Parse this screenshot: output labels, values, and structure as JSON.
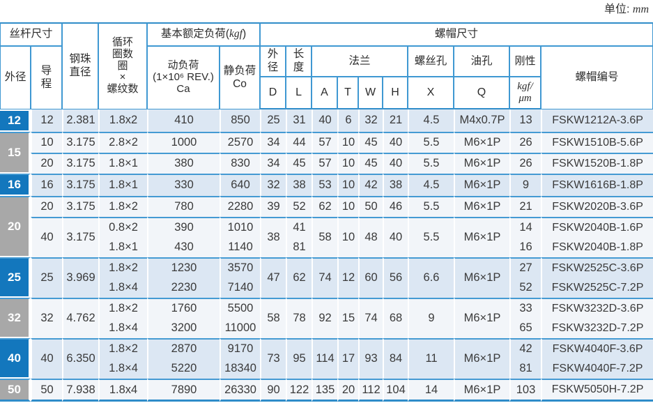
{
  "page": {
    "unit_label": "单位:",
    "unit_value": "mm"
  },
  "colors": {
    "accent_blue": "#2f8cc9",
    "grid_blue": "#3f98d2",
    "separator_blue": "#449ad3",
    "label_blue": "#1377bd",
    "label_gray": "#a8a8a8",
    "row_blue_bg": "#dce7f3",
    "row_light_bg": "#f2f5f9",
    "text": "#3a3a3a"
  },
  "table": {
    "header": {
      "rows": [
        [
          {
            "t": "丝杆尺寸",
            "cs": 2,
            "name": "header-screw-size"
          },
          {
            "t": "钢珠\n直径",
            "rs": 3,
            "name": "header-ball-diameter"
          },
          {
            "t": "循环\n圈数\n圈\n×\n螺纹数",
            "rs": 3,
            "cls": "tight",
            "name": "header-circuits"
          },
          {
            "t": "基本额定负荷(",
            "cs": 2,
            "name": "header-basic-load",
            "parts": [
              {
                "t": "基本额定负荷("
              },
              {
                "t": "kgf",
                "cls": "it"
              },
              {
                "t": ")"
              }
            ]
          },
          {
            "t": "螺帽尺寸",
            "cs": 10,
            "cls": "bline-none",
            "name": "header-nut-size"
          }
        ],
        [
          {
            "t": "外径",
            "rs": 2,
            "name": "header-outer-diameter"
          },
          {
            "t": "导\n程",
            "rs": 2,
            "name": "header-lead"
          },
          {
            "t": "动负荷\n(1×10⁶ REV.)\nCa",
            "rs": 2,
            "cls": "tight",
            "name": "header-dynamic-load"
          },
          {
            "t": "静负荷\nCo",
            "rs": 2,
            "name": "header-static-load"
          },
          {
            "t": "外\n径",
            "name": "header-nut-od"
          },
          {
            "t": "长\n度",
            "name": "header-nut-length"
          },
          {
            "t": "法兰",
            "cs": 4,
            "name": "header-flange"
          },
          {
            "t": "螺丝孔",
            "name": "header-screw-hole"
          },
          {
            "t": "油孔",
            "name": "header-oil-hole"
          },
          {
            "t": "刚性",
            "cls": "tight",
            "name": "header-rigidity"
          },
          {
            "t": "螺帽编号",
            "rs": 2,
            "name": "header-nut-number"
          }
        ],
        [
          {
            "t": "D",
            "cls": "lat",
            "name": "header-col-d"
          },
          {
            "t": "L",
            "cls": "lat",
            "name": "header-col-l"
          },
          {
            "t": "A",
            "cls": "lat",
            "name": "header-col-a"
          },
          {
            "t": "T",
            "cls": "lat",
            "name": "header-col-t"
          },
          {
            "t": "W",
            "cls": "lat",
            "name": "header-col-w"
          },
          {
            "t": "H",
            "cls": "lat",
            "name": "header-col-h"
          },
          {
            "t": "X",
            "cls": "lat",
            "name": "header-col-x"
          },
          {
            "t": "Q",
            "cls": "lat",
            "name": "header-col-q"
          },
          {
            "t": "kgf/\nμm",
            "cls": "it tight",
            "name": "header-rigidity-unit"
          }
        ]
      ]
    },
    "body": {
      "rows": [
        {
          "cls": "g-blue",
          "cells": [
            {
              "t": "12",
              "cls": "lbl lbl-blue",
              "name": "row-label"
            },
            {
              "t": "12"
            },
            {
              "t": "2.381"
            },
            {
              "t": "1.8x2"
            },
            {
              "t": "410"
            },
            {
              "t": "850"
            },
            {
              "t": "25"
            },
            {
              "t": "31"
            },
            {
              "t": "40"
            },
            {
              "t": "6"
            },
            {
              "t": "32"
            },
            {
              "t": "21"
            },
            {
              "t": "4.5"
            },
            {
              "t": "M4x0.7P"
            },
            {
              "t": "13"
            },
            {
              "t": "FSKW1212A-3.6P",
              "cls": "pn"
            }
          ]
        },
        {
          "cls": "g-light sep",
          "cells": [
            {
              "t": "15",
              "cls": "lbl lbl-gray",
              "rs": 2,
              "name": "row-label"
            },
            {
              "t": "10"
            },
            {
              "t": "3.175"
            },
            {
              "t": "2.8×2"
            },
            {
              "t": "1000"
            },
            {
              "t": "2570"
            },
            {
              "t": "34"
            },
            {
              "t": "44"
            },
            {
              "t": "57"
            },
            {
              "t": "10"
            },
            {
              "t": "45"
            },
            {
              "t": "40"
            },
            {
              "t": "5.5"
            },
            {
              "t": "M6×1P"
            },
            {
              "t": "26"
            },
            {
              "t": "FSKW1510B-5.6P",
              "cls": "pn"
            }
          ]
        },
        {
          "cls": "g-light sep",
          "cells": [
            {
              "t": "20"
            },
            {
              "t": "3.175"
            },
            {
              "t": "1.8×1"
            },
            {
              "t": "380"
            },
            {
              "t": "830"
            },
            {
              "t": "34"
            },
            {
              "t": "45"
            },
            {
              "t": "57"
            },
            {
              "t": "10"
            },
            {
              "t": "45"
            },
            {
              "t": "40"
            },
            {
              "t": "5.5"
            },
            {
              "t": "M6×1P"
            },
            {
              "t": "26"
            },
            {
              "t": "FSKW1520B-1.8P",
              "cls": "pn"
            }
          ]
        },
        {
          "cls": "g-blue sep",
          "cells": [
            {
              "t": "16",
              "cls": "lbl lbl-blue",
              "name": "row-label"
            },
            {
              "t": "16"
            },
            {
              "t": "3.175"
            },
            {
              "t": "1.8×1"
            },
            {
              "t": "330"
            },
            {
              "t": "640"
            },
            {
              "t": "32"
            },
            {
              "t": "38"
            },
            {
              "t": "53"
            },
            {
              "t": "10"
            },
            {
              "t": "42"
            },
            {
              "t": "38"
            },
            {
              "t": "4.5"
            },
            {
              "t": "M6×1P"
            },
            {
              "t": "9"
            },
            {
              "t": "FSKW1616B-1.8P",
              "cls": "pn"
            }
          ]
        },
        {
          "cls": "g-light sep",
          "cells": [
            {
              "t": "20",
              "cls": "lbl lbl-gray",
              "rs": 3,
              "name": "row-label"
            },
            {
              "t": "20"
            },
            {
              "t": "3.175"
            },
            {
              "t": "1.8×2"
            },
            {
              "t": "780"
            },
            {
              "t": "2280"
            },
            {
              "t": "39"
            },
            {
              "t": "52"
            },
            {
              "t": "62"
            },
            {
              "t": "10"
            },
            {
              "t": "50"
            },
            {
              "t": "46"
            },
            {
              "t": "5.5"
            },
            {
              "t": "M6×1P"
            },
            {
              "t": "21"
            },
            {
              "t": "FSKW2020B-3.6P",
              "cls": "pn"
            }
          ]
        },
        {
          "cls": "g-light sep",
          "cells": [
            {
              "t": "40",
              "rs": 2
            },
            {
              "t": "3.175",
              "rs": 2
            },
            {
              "t": "0.8×2"
            },
            {
              "t": "390"
            },
            {
              "t": "1010"
            },
            {
              "t": "38",
              "rs": 2
            },
            {
              "t": "41"
            },
            {
              "t": "58",
              "rs": 2
            },
            {
              "t": "10",
              "rs": 2
            },
            {
              "t": "48",
              "rs": 2
            },
            {
              "t": "40",
              "rs": 2
            },
            {
              "t": "5.5",
              "rs": 2
            },
            {
              "t": "M6×1P",
              "rs": 2
            },
            {
              "t": "14"
            },
            {
              "t": "FSKW2040B-1.6P",
              "cls": "pn"
            }
          ]
        },
        {
          "cls": "g-light",
          "cells": [
            {
              "t": "1.8×1"
            },
            {
              "t": "430"
            },
            {
              "t": "1140"
            },
            {
              "t": "81"
            },
            {
              "t": "16"
            },
            {
              "t": "FSKW2040B-1.8P",
              "cls": "pn"
            }
          ]
        },
        {
          "cls": "g-blue sep",
          "cells": [
            {
              "t": "25",
              "cls": "lbl lbl-blue",
              "rs": 2,
              "name": "row-label"
            },
            {
              "t": "25",
              "rs": 2
            },
            {
              "t": "3.969",
              "rs": 2
            },
            {
              "t": "1.8×2"
            },
            {
              "t": "1230"
            },
            {
              "t": "3570"
            },
            {
              "t": "47",
              "rs": 2
            },
            {
              "t": "62",
              "rs": 2
            },
            {
              "t": "74",
              "rs": 2
            },
            {
              "t": "12",
              "rs": 2
            },
            {
              "t": "60",
              "rs": 2
            },
            {
              "t": "56",
              "rs": 2
            },
            {
              "t": "6.6",
              "rs": 2
            },
            {
              "t": "M6×1P",
              "rs": 2
            },
            {
              "t": "27"
            },
            {
              "t": "FSKW2525C-3.6P",
              "cls": "pn"
            }
          ]
        },
        {
          "cls": "g-blue",
          "cells": [
            {
              "t": "1.8×4"
            },
            {
              "t": "2230"
            },
            {
              "t": "7140"
            },
            {
              "t": "52"
            },
            {
              "t": "FSKW2525C-7.2P",
              "cls": "pn"
            }
          ]
        },
        {
          "cls": "g-light sep",
          "cells": [
            {
              "t": "32",
              "cls": "lbl lbl-gray",
              "rs": 2,
              "name": "row-label"
            },
            {
              "t": "32",
              "rs": 2
            },
            {
              "t": "4.762",
              "rs": 2
            },
            {
              "t": "1.8×2"
            },
            {
              "t": "1760"
            },
            {
              "t": "5500"
            },
            {
              "t": "58",
              "rs": 2
            },
            {
              "t": "78",
              "rs": 2
            },
            {
              "t": "92",
              "rs": 2
            },
            {
              "t": "15",
              "rs": 2
            },
            {
              "t": "74",
              "rs": 2
            },
            {
              "t": "68",
              "rs": 2
            },
            {
              "t": "9",
              "rs": 2
            },
            {
              "t": "M6×1P",
              "rs": 2
            },
            {
              "t": "33"
            },
            {
              "t": "FSKW3232D-3.6P",
              "cls": "pn"
            }
          ]
        },
        {
          "cls": "g-light",
          "cells": [
            {
              "t": "1.8×4"
            },
            {
              "t": "3200"
            },
            {
              "t": "11000"
            },
            {
              "t": "65"
            },
            {
              "t": "FSKW3232D-7.2P",
              "cls": "pn"
            }
          ]
        },
        {
          "cls": "g-blue sep",
          "cells": [
            {
              "t": "40",
              "cls": "lbl lbl-blue",
              "rs": 2,
              "name": "row-label"
            },
            {
              "t": "40",
              "rs": 2
            },
            {
              "t": "6.350",
              "rs": 2
            },
            {
              "t": "1.8×2"
            },
            {
              "t": "2870"
            },
            {
              "t": "9170"
            },
            {
              "t": "73",
              "rs": 2
            },
            {
              "t": "95",
              "rs": 2
            },
            {
              "t": "114",
              "rs": 2
            },
            {
              "t": "17",
              "rs": 2
            },
            {
              "t": "93",
              "rs": 2
            },
            {
              "t": "84",
              "rs": 2
            },
            {
              "t": "11",
              "rs": 2
            },
            {
              "t": "M6×1P",
              "rs": 2
            },
            {
              "t": "42"
            },
            {
              "t": "FSKW4040F-3.6P",
              "cls": "pn"
            }
          ]
        },
        {
          "cls": "g-blue",
          "cells": [
            {
              "t": "1.8×4"
            },
            {
              "t": "5220"
            },
            {
              "t": "18340"
            },
            {
              "t": "81"
            },
            {
              "t": "FSKW4040F-7.2P",
              "cls": "pn"
            }
          ]
        },
        {
          "cls": "g-light sep last",
          "cells": [
            {
              "t": "50",
              "cls": "lbl lbl-gray",
              "name": "row-label"
            },
            {
              "t": "50"
            },
            {
              "t": "7.938"
            },
            {
              "t": "1.8x4"
            },
            {
              "t": "7890"
            },
            {
              "t": "26330"
            },
            {
              "t": "90"
            },
            {
              "t": "122"
            },
            {
              "t": "135"
            },
            {
              "t": "20"
            },
            {
              "t": "112"
            },
            {
              "t": "104"
            },
            {
              "t": "14"
            },
            {
              "t": "M6×1P"
            },
            {
              "t": "103"
            },
            {
              "t": "FSKW5050H-7.2P",
              "cls": "pn"
            }
          ]
        }
      ]
    }
  }
}
